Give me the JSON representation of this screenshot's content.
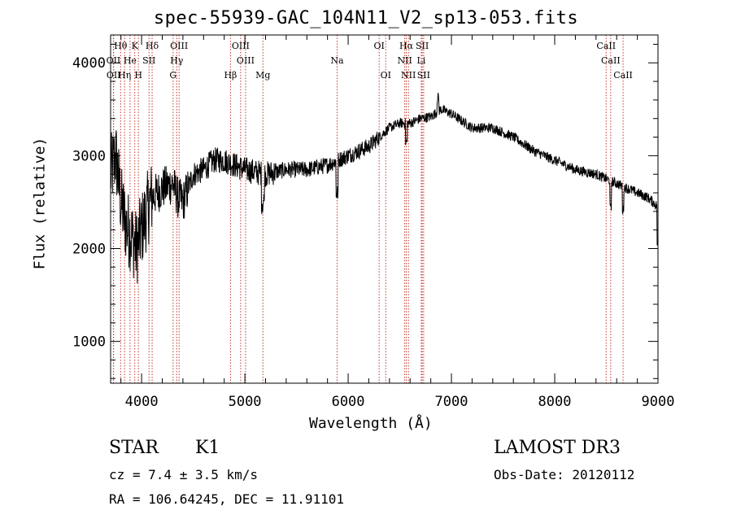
{
  "chart_data": {
    "type": "line",
    "title": "spec-55939-GAC_104N11_V2_sp13-053.fits",
    "xlabel": "Wavelength (Å)",
    "ylabel": "Flux (relative)",
    "xlim": [
      3700,
      9000
    ],
    "ylim": [
      550,
      4300
    ],
    "xticks": [
      4000,
      5000,
      6000,
      7000,
      8000,
      9000
    ],
    "yticks": [
      1000,
      2000,
      3000,
      4000
    ],
    "spectrum_anchor_points": {
      "wavelength": [
        3700,
        3750,
        3800,
        3850,
        3900,
        3950,
        4000,
        4050,
        4100,
        4200,
        4300,
        4350,
        4400,
        4500,
        4600,
        4700,
        4800,
        4900,
        5000,
        5200,
        5400,
        5600,
        5800,
        5900,
        6000,
        6200,
        6300,
        6400,
        6500,
        6600,
        6700,
        6800,
        6900,
        7000,
        7200,
        7400,
        7600,
        7800,
        8000,
        8200,
        8400,
        8500,
        8600,
        8700,
        8800,
        8900,
        9000
      ],
      "flux": [
        2800,
        3000,
        2500,
        2250,
        2150,
        2000,
        2200,
        2400,
        2550,
        2650,
        2700,
        2550,
        2500,
        2800,
        2850,
        2950,
        2950,
        2900,
        2850,
        2800,
        2850,
        2850,
        2900,
        2950,
        3000,
        3100,
        3200,
        3300,
        3350,
        3350,
        3400,
        3420,
        3500,
        3450,
        3300,
        3300,
        3200,
        3050,
        2950,
        2850,
        2800,
        2750,
        2700,
        2650,
        2600,
        2550,
        2450
      ]
    },
    "line_markers": {
      "row1": [
        {
          "label": "Hθ",
          "x": 3797
        },
        {
          "label": "K",
          "x": 3934
        },
        {
          "label": "Hδ",
          "x": 4102
        },
        {
          "label": "OIII",
          "x": 4363
        },
        {
          "label": "OIII",
          "x": 4959
        },
        {
          "label": "OI",
          "x": 6300
        },
        {
          "label": "Hα",
          "x": 6563
        },
        {
          "label": "SII",
          "x": 6717
        },
        {
          "label": "CaII",
          "x": 8498
        }
      ],
      "row2": [
        {
          "label": "OII",
          "x": 3727
        },
        {
          "label": "He",
          "x": 3888
        },
        {
          "label": "SII",
          "x": 4072
        },
        {
          "label": "Hγ",
          "x": 4340
        },
        {
          "label": "OIII",
          "x": 5007
        },
        {
          "label": "Na",
          "x": 5893
        },
        {
          "label": "NII",
          "x": 6548
        },
        {
          "label": "Li",
          "x": 6708
        },
        {
          "label": "CaII",
          "x": 8542
        }
      ],
      "row3": [
        {
          "label": "OII",
          "x": 3729
        },
        {
          "label": "Hη",
          "x": 3835
        },
        {
          "label": "H",
          "x": 3969
        },
        {
          "label": "G",
          "x": 4305
        },
        {
          "label": "Hβ",
          "x": 4861
        },
        {
          "label": "Mg",
          "x": 5175
        },
        {
          "label": "OI",
          "x": 6364
        },
        {
          "label": "NII",
          "x": 6584
        },
        {
          "label": "SII",
          "x": 6731
        },
        {
          "label": "CaII",
          "x": 8662
        }
      ]
    }
  },
  "info": {
    "class": "STAR",
    "subclass": "K1",
    "survey": "LAMOST DR3",
    "cz": "cz = 7.4 ± 3.5 km/s",
    "obs_date": "Obs-Date: 20120112",
    "coords": "RA = 106.64245, DEC =  11.91101"
  }
}
